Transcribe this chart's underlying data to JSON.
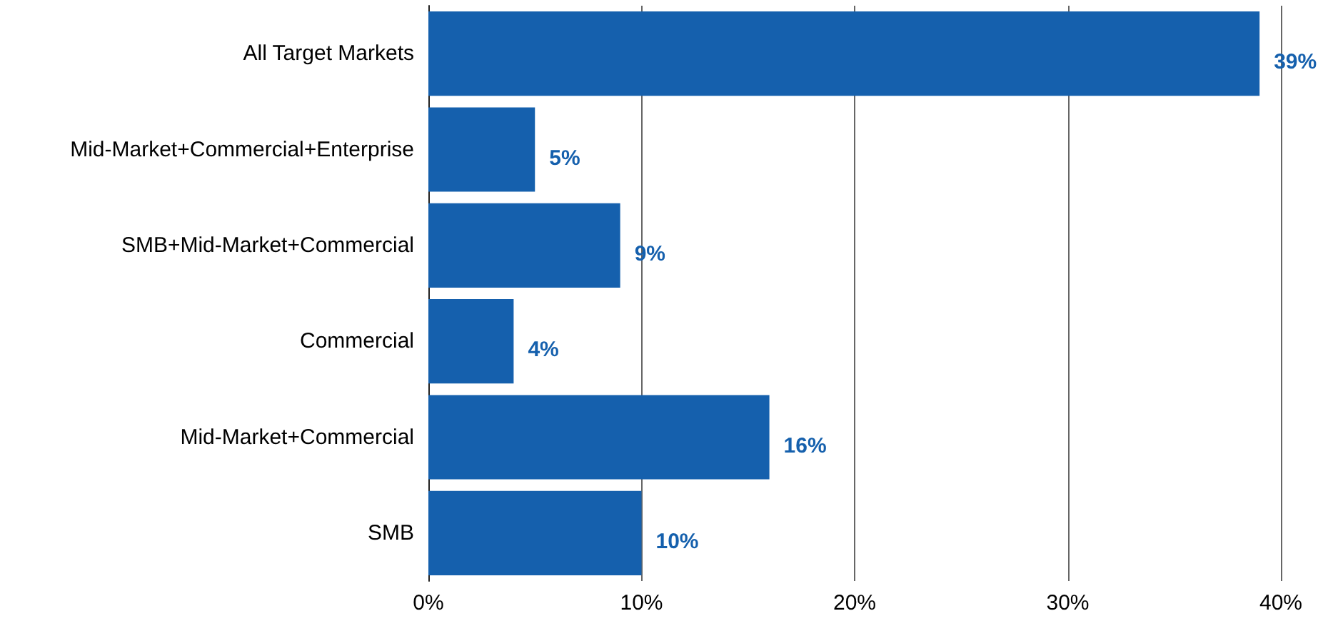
{
  "chart_data": {
    "type": "bar",
    "orientation": "horizontal",
    "categories": [
      "All Target Markets",
      "Mid-Market+Commercial+Enterprise",
      "SMB+Mid-Market+Commercial",
      "Commercial",
      "Mid-Market+Commercial",
      "SMB"
    ],
    "values": [
      39,
      5,
      9,
      4,
      16,
      10
    ],
    "value_labels": [
      "39%",
      "5%",
      "9%",
      "4%",
      "16%",
      "10%"
    ],
    "color": "#1560ad",
    "xlim": [
      0,
      40
    ],
    "xticks": [
      {
        "value": 0,
        "label": "0%"
      },
      {
        "value": 10,
        "label": "10%"
      },
      {
        "value": 20,
        "label": "20%"
      },
      {
        "value": 30,
        "label": "30%"
      },
      {
        "value": 40,
        "label": "40%"
      }
    ],
    "grid": "x"
  }
}
